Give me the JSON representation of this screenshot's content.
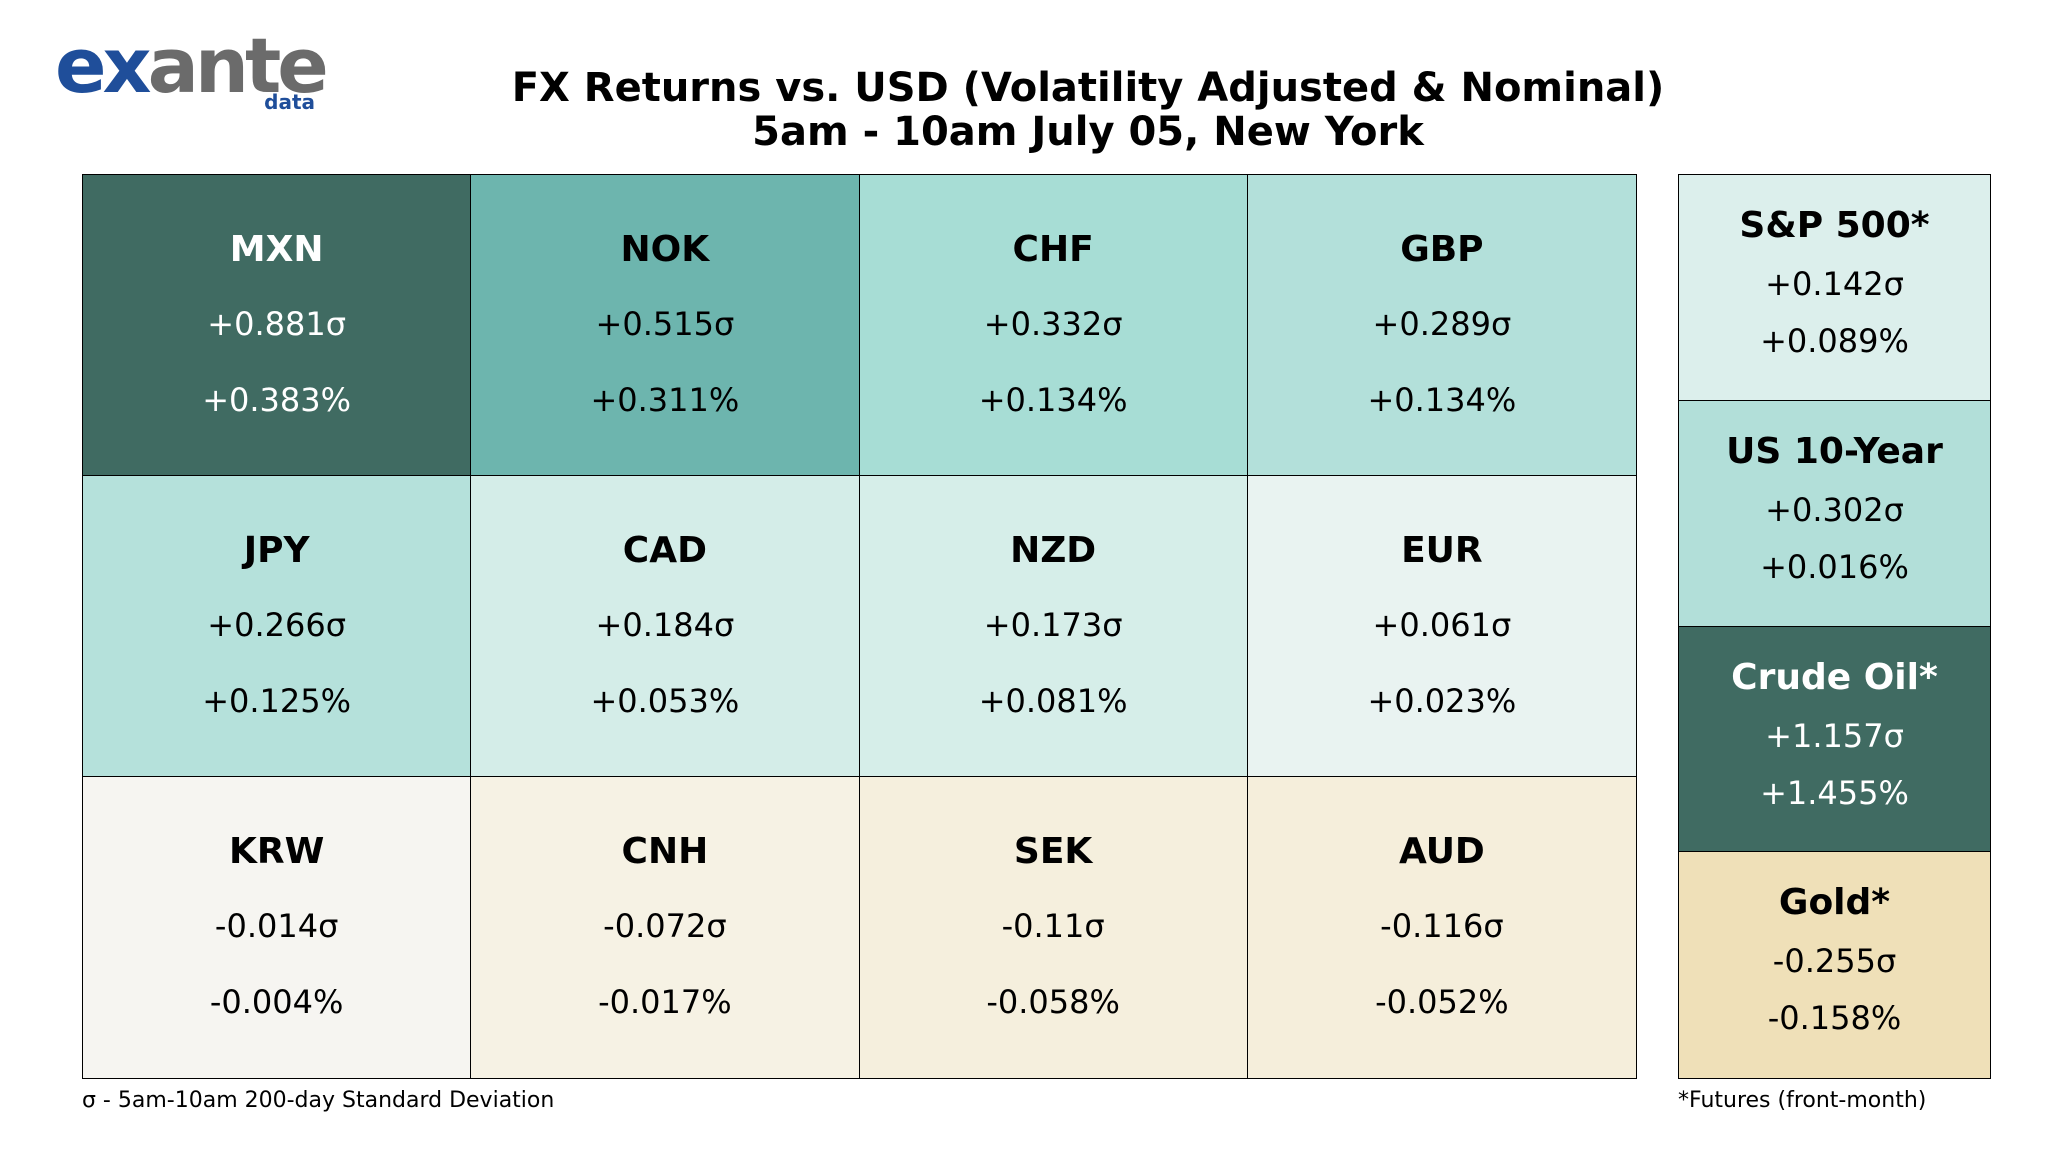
{
  "logo": {
    "brand_part1": "ex",
    "brand_part2": "ante",
    "sub": "data"
  },
  "title": {
    "line1": "FX Returns vs. USD (Volatility Adjusted & Nominal)",
    "line2": "5am - 10am July 05, New York"
  },
  "colors": {
    "dark_green": "#406b62",
    "mid_teal": "#6db5ae",
    "light_teal": "#a7ddd5",
    "pale_teal": "#b3e0da",
    "very_pale_teal": "#d4ede8",
    "near_white_teal": "#e9f3f1",
    "neutral": "#f6f5f1",
    "pale_sand": "#f6f2e4",
    "sand": "#f5eedb",
    "gold": "#efe0b8"
  },
  "chart_data": {
    "type": "table",
    "units": {
      "vol_adjusted": "σ",
      "nominal": "%"
    },
    "fx": [
      {
        "name": "MXN",
        "sigma": "+0.881σ",
        "pct": "+0.383%",
        "color": "#406b62",
        "text": "#ffffff"
      },
      {
        "name": "NOK",
        "sigma": "+0.515σ",
        "pct": "+0.311%",
        "color": "#6db5ae",
        "text": "#000000"
      },
      {
        "name": "CHF",
        "sigma": "+0.332σ",
        "pct": "+0.134%",
        "color": "#a7ddd5",
        "text": "#000000"
      },
      {
        "name": "GBP",
        "sigma": "+0.289σ",
        "pct": "+0.134%",
        "color": "#b3e0da",
        "text": "#000000"
      },
      {
        "name": "JPY",
        "sigma": "+0.266σ",
        "pct": "+0.125%",
        "color": "#b5e1db",
        "text": "#000000"
      },
      {
        "name": "CAD",
        "sigma": "+0.184σ",
        "pct": "+0.053%",
        "color": "#d4ede8",
        "text": "#000000"
      },
      {
        "name": "NZD",
        "sigma": "+0.173σ",
        "pct": "+0.081%",
        "color": "#d6eee9",
        "text": "#000000"
      },
      {
        "name": "EUR",
        "sigma": "+0.061σ",
        "pct": "+0.023%",
        "color": "#e9f3f1",
        "text": "#000000"
      },
      {
        "name": "KRW",
        "sigma": "-0.014σ",
        "pct": "-0.004%",
        "color": "#f6f5f1",
        "text": "#000000"
      },
      {
        "name": "CNH",
        "sigma": "-0.072σ",
        "pct": "-0.017%",
        "color": "#f6f2e4",
        "text": "#000000"
      },
      {
        "name": "SEK",
        "sigma": "-0.11σ",
        "pct": "-0.058%",
        "color": "#f5efdd",
        "text": "#000000"
      },
      {
        "name": "AUD",
        "sigma": "-0.116σ",
        "pct": "-0.052%",
        "color": "#f5eedb",
        "text": "#000000"
      }
    ],
    "other_assets": [
      {
        "name": "S&P 500*",
        "sigma": "+0.142σ",
        "pct": "+0.089%",
        "color": "#dcefec",
        "text": "#000000"
      },
      {
        "name": "US 10-Year",
        "sigma": "+0.302σ",
        "pct": "+0.016%",
        "color": "#b2dfd9",
        "text": "#000000"
      },
      {
        "name": "Crude Oil*",
        "sigma": "+1.157σ",
        "pct": "+1.455%",
        "color": "#406b62",
        "text": "#ffffff"
      },
      {
        "name": "Gold*",
        "sigma": "-0.255σ",
        "pct": "-0.158%",
        "color": "#efe0b8",
        "text": "#000000"
      }
    ]
  },
  "footnotes": {
    "left": "σ - 5am-10am 200-day Standard Deviation",
    "right": "*Futures (front-month)"
  }
}
